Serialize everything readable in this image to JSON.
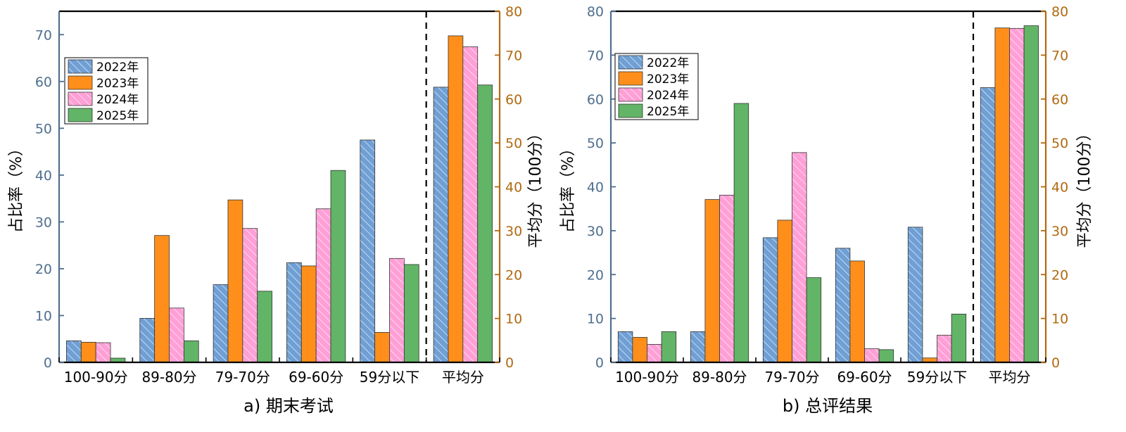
{
  "colors": {
    "left_axis": "#4f6f8f",
    "right_axis": "#b06a12",
    "series": [
      "#6f9fd4",
      "#ff8f1a",
      "#ff9fd6",
      "#62b566"
    ]
  },
  "chart_data": [
    {
      "type": "bar",
      "panel_title": "a) 期末考试",
      "ylabel_left": "占比率（%）",
      "ylabel_right": "平均分（100分）",
      "left_ylim": [
        0,
        75
      ],
      "left_ticks": [
        0,
        10,
        20,
        30,
        40,
        50,
        60,
        70
      ],
      "right_ylim": [
        0,
        80
      ],
      "right_ticks": [
        0,
        10,
        20,
        30,
        40,
        50,
        60,
        70,
        80
      ],
      "categories": [
        "100-90分",
        "89-80分",
        "79-70分",
        "69-60分",
        "59分以下",
        "平均分"
      ],
      "right_axis_categories": [
        "平均分"
      ],
      "legend": [
        "2022年",
        "2023年",
        "2024年",
        "2025年"
      ],
      "series": [
        {
          "name": "2022年",
          "values": [
            4.6,
            9.4,
            16.6,
            21.3,
            47.5,
            62.7
          ]
        },
        {
          "name": "2023年",
          "values": [
            4.3,
            27.1,
            34.7,
            20.6,
            6.4,
            74.4
          ]
        },
        {
          "name": "2024年",
          "values": [
            4.2,
            11.6,
            28.6,
            32.8,
            22.2,
            71.9
          ]
        },
        {
          "name": "2025年",
          "values": [
            0.9,
            4.6,
            15.2,
            41.0,
            20.9,
            63.2
          ]
        }
      ]
    },
    {
      "type": "bar",
      "panel_title": "b) 总评结果",
      "ylabel_left": "占比率（%）",
      "ylabel_right": "平均分（100分）",
      "left_ylim": [
        0,
        80
      ],
      "left_ticks": [
        0,
        10,
        20,
        30,
        40,
        50,
        60,
        70,
        80
      ],
      "right_ylim": [
        0,
        80
      ],
      "right_ticks": [
        0,
        10,
        20,
        30,
        40,
        50,
        60,
        70,
        80
      ],
      "categories": [
        "100-90分",
        "89-80分",
        "79-70分",
        "69-60分",
        "59分以下",
        "平均分"
      ],
      "right_axis_categories": [
        "平均分"
      ],
      "legend": [
        "2022年",
        "2023年",
        "2024年",
        "2025年"
      ],
      "series": [
        {
          "name": "2022年",
          "values": [
            7.0,
            7.0,
            28.4,
            26.0,
            30.8,
            62.6
          ]
        },
        {
          "name": "2023年",
          "values": [
            5.7,
            37.1,
            32.4,
            23.1,
            1.0,
            76.2
          ]
        },
        {
          "name": "2024年",
          "values": [
            4.1,
            38.1,
            47.8,
            3.1,
            6.2,
            76.1
          ]
        },
        {
          "name": "2025年",
          "values": [
            7.0,
            59.0,
            19.3,
            2.9,
            11.0,
            76.7
          ]
        }
      ]
    }
  ]
}
